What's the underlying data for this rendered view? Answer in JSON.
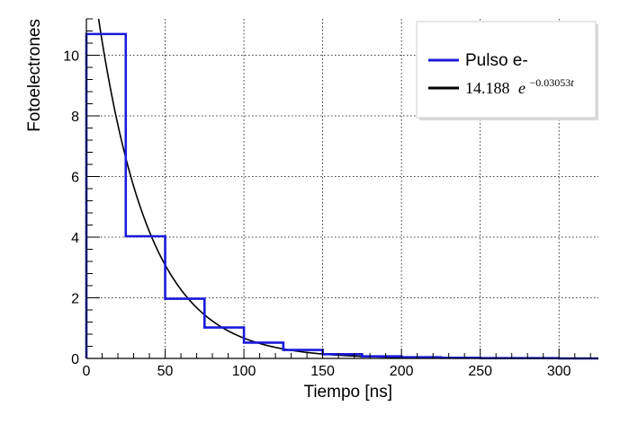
{
  "chart_data": {
    "type": "histogram",
    "xlabel": "Tiempo [ns]",
    "ylabel": "Fotoelectrones",
    "xlim": [
      0,
      325
    ],
    "ylim": [
      0,
      11.2
    ],
    "x_ticks": [
      0,
      50,
      100,
      150,
      200,
      250,
      300
    ],
    "x_tick_labels": [
      "0",
      "50",
      "100",
      "150",
      "200",
      "250",
      "300"
    ],
    "y_ticks": [
      0,
      2,
      4,
      6,
      8,
      10
    ],
    "y_tick_labels": [
      "0",
      "2",
      "4",
      "6",
      "8",
      "10"
    ],
    "grid": true,
    "legend_position": "top-right",
    "series": [
      {
        "name": "Pulso e-",
        "kind": "step-histogram",
        "color": "#1a1adb",
        "bin_edges": [
          0,
          25,
          50,
          75,
          100,
          125,
          150,
          175,
          200,
          225,
          250,
          275,
          300,
          325
        ],
        "values": [
          10.7,
          4.03,
          1.97,
          1.02,
          0.52,
          0.28,
          0.14,
          0.07,
          0.04,
          0.02,
          0.01,
          0.01,
          0.0
        ]
      },
      {
        "name": "14.188 e^{-0.03053 t}",
        "kind": "function",
        "color": "#000000",
        "amplitude": 14.188,
        "rate": 0.03053,
        "x_range": [
          0,
          325
        ]
      }
    ],
    "legend": {
      "entry1": "Pulso e-",
      "entry2_coeff": "14.188",
      "entry2_base": "e",
      "entry2_exponent": "−0.03053",
      "entry2_var": "t"
    }
  }
}
